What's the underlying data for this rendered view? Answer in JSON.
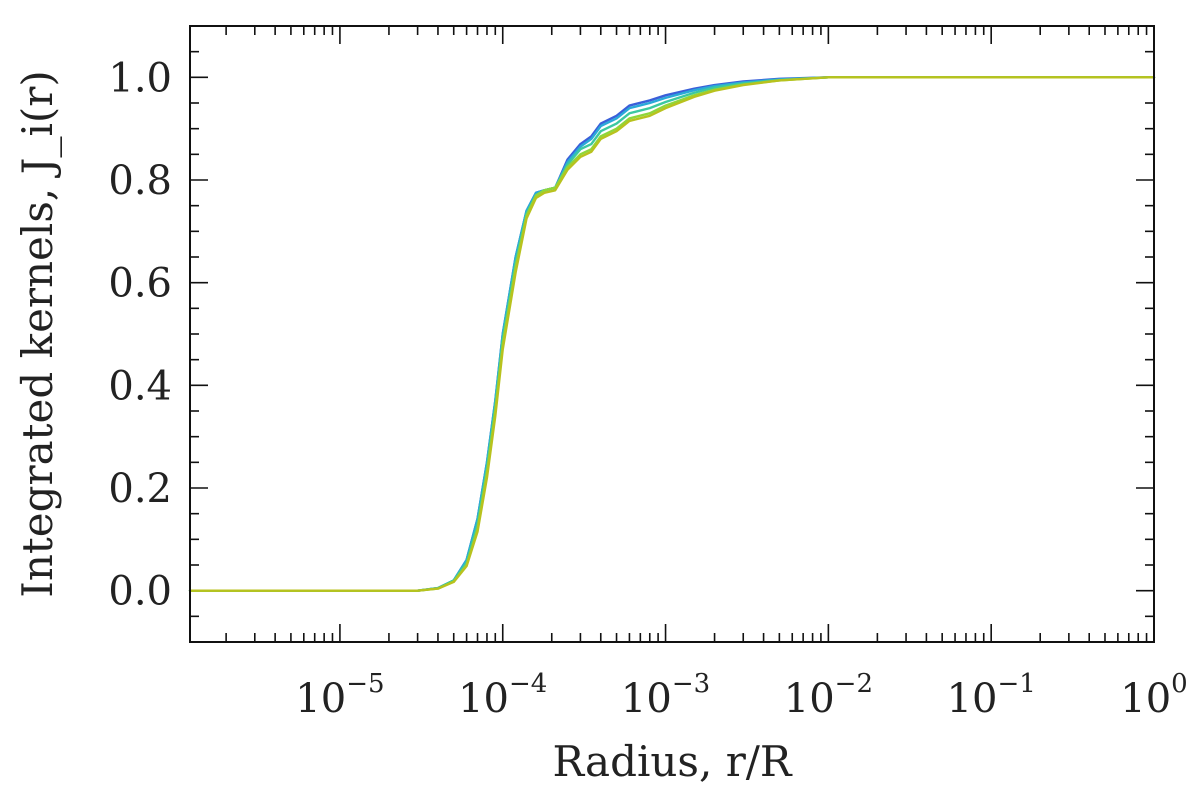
{
  "chart_data": {
    "type": "line",
    "title": "",
    "xlabel": "Radius, r/R",
    "ylabel": "Integrated kernels, J_i(r)",
    "xscale": "log",
    "xlim": [
      1.2e-06,
      1.0
    ],
    "ylim": [
      -0.1,
      1.1
    ],
    "x_ticks": [
      {
        "value": 1e-05,
        "base": "10",
        "exp": "−5"
      },
      {
        "value": 0.0001,
        "base": "10",
        "exp": "−4"
      },
      {
        "value": 0.001,
        "base": "10",
        "exp": "−3"
      },
      {
        "value": 0.01,
        "base": "10",
        "exp": "−2"
      },
      {
        "value": 0.1,
        "base": "10",
        "exp": "−1"
      },
      {
        "value": 1,
        "base": "10",
        "exp": "0"
      }
    ],
    "y_ticks": [
      "0.0",
      "0.2",
      "0.4",
      "0.6",
      "0.8",
      "1.0"
    ],
    "y_tick_values": [
      0.0,
      0.2,
      0.4,
      0.6,
      0.8,
      1.0
    ],
    "grid": false,
    "legend": "none",
    "series": [
      {
        "color": "#3a5fd9",
        "x": [
          1.2e-06,
          3e-05,
          4e-05,
          5e-05,
          6e-05,
          7e-05,
          8e-05,
          9e-05,
          0.0001,
          0.00012,
          0.00014,
          0.00016,
          0.00018,
          0.00021,
          0.00025,
          0.0003,
          0.00035,
          0.0004,
          0.0005,
          0.0006,
          0.0008,
          0.001,
          0.0015,
          0.002,
          0.003,
          0.005,
          0.01,
          1.0
        ],
        "y": [
          0.0,
          0.0,
          0.005,
          0.02,
          0.06,
          0.14,
          0.25,
          0.37,
          0.5,
          0.65,
          0.74,
          0.775,
          0.78,
          0.785,
          0.84,
          0.87,
          0.885,
          0.91,
          0.925,
          0.945,
          0.955,
          0.965,
          0.978,
          0.985,
          0.992,
          0.997,
          1.0,
          1.0
        ]
      },
      {
        "color": "#2aa9d8",
        "x": [
          1.2e-06,
          3e-05,
          4e-05,
          5e-05,
          6e-05,
          7e-05,
          8e-05,
          9e-05,
          0.0001,
          0.00012,
          0.00014,
          0.00016,
          0.00018,
          0.00021,
          0.00025,
          0.0003,
          0.00035,
          0.0004,
          0.0005,
          0.0006,
          0.0008,
          0.001,
          0.0015,
          0.002,
          0.003,
          0.005,
          0.01,
          1.0
        ],
        "y": [
          0.0,
          0.0,
          0.005,
          0.02,
          0.06,
          0.14,
          0.25,
          0.37,
          0.5,
          0.65,
          0.74,
          0.775,
          0.78,
          0.785,
          0.835,
          0.865,
          0.88,
          0.905,
          0.92,
          0.94,
          0.95,
          0.96,
          0.975,
          0.983,
          0.99,
          0.996,
          1.0,
          1.0
        ]
      },
      {
        "color": "#3cc8a0",
        "x": [
          1.2e-06,
          3e-05,
          4e-05,
          5e-05,
          6e-05,
          7e-05,
          8e-05,
          9e-05,
          0.0001,
          0.00012,
          0.00014,
          0.00016,
          0.00018,
          0.00021,
          0.00025,
          0.0003,
          0.00035,
          0.0004,
          0.0005,
          0.0006,
          0.0008,
          0.001,
          0.0015,
          0.002,
          0.003,
          0.005,
          0.01,
          1.0
        ],
        "y": [
          0.0,
          0.0,
          0.005,
          0.02,
          0.055,
          0.13,
          0.24,
          0.36,
          0.49,
          0.64,
          0.735,
          0.77,
          0.78,
          0.785,
          0.83,
          0.86,
          0.87,
          0.895,
          0.91,
          0.93,
          0.94,
          0.952,
          0.97,
          0.98,
          0.988,
          0.995,
          1.0,
          1.0
        ]
      },
      {
        "color": "#8fd63a",
        "x": [
          1.2e-06,
          3e-05,
          4e-05,
          5e-05,
          6e-05,
          7e-05,
          8e-05,
          9e-05,
          0.0001,
          0.00012,
          0.00014,
          0.00016,
          0.00018,
          0.00021,
          0.00025,
          0.0003,
          0.00035,
          0.0004,
          0.0005,
          0.0006,
          0.0008,
          0.001,
          0.0015,
          0.002,
          0.003,
          0.005,
          0.01,
          1.0
        ],
        "y": [
          0.0,
          0.0,
          0.004,
          0.018,
          0.05,
          0.12,
          0.23,
          0.35,
          0.48,
          0.63,
          0.73,
          0.77,
          0.78,
          0.785,
          0.825,
          0.85,
          0.86,
          0.885,
          0.9,
          0.92,
          0.93,
          0.945,
          0.965,
          0.976,
          0.986,
          0.994,
          1.0,
          1.0
        ]
      },
      {
        "color": "#b8c21e",
        "x": [
          1.2e-06,
          3e-05,
          4e-05,
          5e-05,
          6e-05,
          7e-05,
          8e-05,
          9e-05,
          0.0001,
          0.00012,
          0.00014,
          0.00016,
          0.00018,
          0.00021,
          0.00025,
          0.0003,
          0.00035,
          0.0004,
          0.0005,
          0.0006,
          0.0008,
          0.001,
          0.0015,
          0.002,
          0.003,
          0.005,
          0.01,
          1.0
        ],
        "y": [
          0.0,
          0.0,
          0.004,
          0.017,
          0.048,
          0.115,
          0.22,
          0.34,
          0.47,
          0.62,
          0.725,
          0.765,
          0.775,
          0.78,
          0.82,
          0.845,
          0.855,
          0.88,
          0.895,
          0.915,
          0.925,
          0.94,
          0.962,
          0.974,
          0.985,
          0.994,
          1.0,
          1.0
        ]
      }
    ]
  }
}
